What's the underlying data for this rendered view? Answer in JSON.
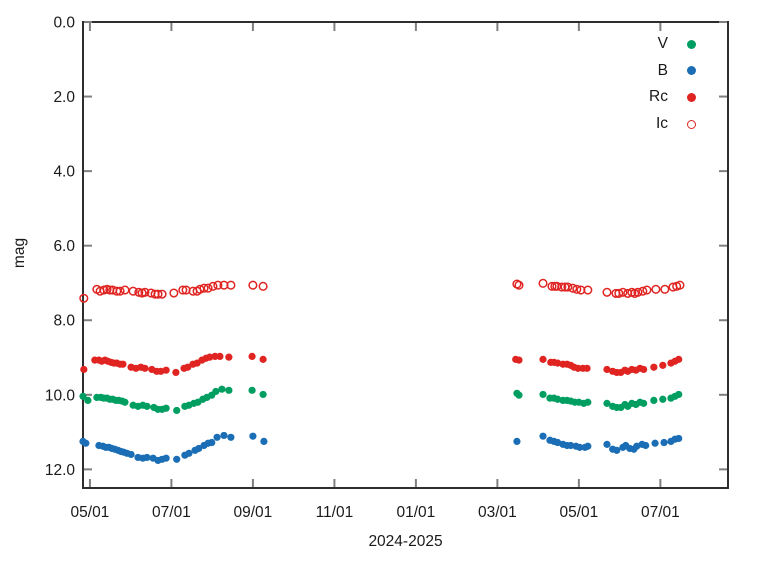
{
  "figure": {
    "background": "#ffffff",
    "border_color": "#2e2e2e",
    "tick_color": "#7f7f7f",
    "text_color": "#1a1a1a"
  },
  "chart_data": {
    "type": "scatter",
    "title": "",
    "xlabel": "2024-2025",
    "ylabel": "mag",
    "y_inverted": true,
    "grid": false,
    "x_axis": {
      "unit": "months since 2024-05-01",
      "range": [
        -0.17,
        15.66
      ],
      "ticks": [
        0,
        2,
        4,
        6,
        8,
        10,
        12,
        14
      ],
      "tick_labels": [
        "05/01",
        "07/01",
        "09/01",
        "11/01",
        "01/01",
        "03/01",
        "05/01",
        "07/01"
      ]
    },
    "y_axis": {
      "range": [
        0,
        12.5
      ],
      "ticks": [
        0,
        2,
        4,
        6,
        8,
        10,
        12
      ],
      "tick_labels": [
        "0.0",
        "2.0",
        "4.0",
        "6.0",
        "8.0",
        "10.0",
        "12.0"
      ]
    },
    "legend": {
      "position": "top-right"
    },
    "series": [
      {
        "name": "V",
        "color": "#009e60",
        "marker": "filled-circle",
        "points": [
          [
            -0.17,
            10.04
          ],
          [
            -0.05,
            10.15
          ],
          [
            0.17,
            10.07
          ],
          [
            0.27,
            10.07
          ],
          [
            0.34,
            10.09
          ],
          [
            0.42,
            10.09
          ],
          [
            0.49,
            10.12
          ],
          [
            0.56,
            10.12
          ],
          [
            0.64,
            10.15
          ],
          [
            0.71,
            10.15
          ],
          [
            0.79,
            10.17
          ],
          [
            0.86,
            10.2
          ],
          [
            1.06,
            10.28
          ],
          [
            1.18,
            10.31
          ],
          [
            1.3,
            10.28
          ],
          [
            1.4,
            10.31
          ],
          [
            1.57,
            10.34
          ],
          [
            1.67,
            10.39
          ],
          [
            1.77,
            10.39
          ],
          [
            1.87,
            10.36
          ],
          [
            2.13,
            10.42
          ],
          [
            2.33,
            10.31
          ],
          [
            2.43,
            10.28
          ],
          [
            2.55,
            10.23
          ],
          [
            2.65,
            10.2
          ],
          [
            2.77,
            10.12
          ],
          [
            2.87,
            10.07
          ],
          [
            2.99,
            10.01
          ],
          [
            3.09,
            9.91
          ],
          [
            3.24,
            9.85
          ],
          [
            3.41,
            9.88
          ],
          [
            3.98,
            9.88
          ],
          [
            4.25,
            9.99
          ],
          [
            10.48,
            9.96
          ],
          [
            10.53,
            10.01
          ],
          [
            11.12,
            9.99
          ],
          [
            11.29,
            10.09
          ],
          [
            11.39,
            10.09
          ],
          [
            11.48,
            10.12
          ],
          [
            11.61,
            10.15
          ],
          [
            11.71,
            10.15
          ],
          [
            11.8,
            10.17
          ],
          [
            11.9,
            10.2
          ],
          [
            12.0,
            10.2
          ],
          [
            12.12,
            10.23
          ],
          [
            12.22,
            10.2
          ],
          [
            12.69,
            10.23
          ],
          [
            12.83,
            10.31
          ],
          [
            12.93,
            10.34
          ],
          [
            13.03,
            10.34
          ],
          [
            13.13,
            10.26
          ],
          [
            13.2,
            10.31
          ],
          [
            13.3,
            10.23
          ],
          [
            13.4,
            10.26
          ],
          [
            13.5,
            10.2
          ],
          [
            13.59,
            10.23
          ],
          [
            13.84,
            10.15
          ],
          [
            14.06,
            10.12
          ],
          [
            14.26,
            10.09
          ],
          [
            14.36,
            10.04
          ],
          [
            14.45,
            9.99
          ]
        ]
      },
      {
        "name": "B",
        "color": "#1b6eb5",
        "marker": "filled-circle",
        "points": [
          [
            -0.17,
            11.25
          ],
          [
            -0.1,
            11.3
          ],
          [
            0.22,
            11.36
          ],
          [
            0.32,
            11.38
          ],
          [
            0.39,
            11.41
          ],
          [
            0.47,
            11.41
          ],
          [
            0.54,
            11.44
          ],
          [
            0.61,
            11.46
          ],
          [
            0.69,
            11.49
          ],
          [
            0.76,
            11.52
          ],
          [
            0.83,
            11.54
          ],
          [
            0.91,
            11.57
          ],
          [
            1.01,
            11.6
          ],
          [
            1.18,
            11.68
          ],
          [
            1.3,
            11.7
          ],
          [
            1.4,
            11.68
          ],
          [
            1.55,
            11.7
          ],
          [
            1.67,
            11.76
          ],
          [
            1.77,
            11.73
          ],
          [
            1.87,
            11.7
          ],
          [
            2.13,
            11.73
          ],
          [
            2.33,
            11.62
          ],
          [
            2.43,
            11.57
          ],
          [
            2.58,
            11.49
          ],
          [
            2.67,
            11.44
          ],
          [
            2.8,
            11.36
          ],
          [
            2.9,
            11.3
          ],
          [
            2.99,
            11.28
          ],
          [
            3.12,
            11.14
          ],
          [
            3.29,
            11.09
          ],
          [
            3.46,
            11.14
          ],
          [
            4.0,
            11.11
          ],
          [
            4.27,
            11.25
          ],
          [
            10.48,
            11.25
          ],
          [
            11.12,
            11.11
          ],
          [
            11.29,
            11.22
          ],
          [
            11.39,
            11.25
          ],
          [
            11.48,
            11.28
          ],
          [
            11.61,
            11.33
          ],
          [
            11.71,
            11.36
          ],
          [
            11.8,
            11.36
          ],
          [
            11.93,
            11.38
          ],
          [
            12.02,
            11.41
          ],
          [
            12.15,
            11.41
          ],
          [
            12.22,
            11.38
          ],
          [
            12.69,
            11.33
          ],
          [
            12.83,
            11.46
          ],
          [
            12.93,
            11.49
          ],
          [
            13.08,
            11.41
          ],
          [
            13.15,
            11.36
          ],
          [
            13.25,
            11.44
          ],
          [
            13.35,
            11.46
          ],
          [
            13.42,
            11.38
          ],
          [
            13.55,
            11.33
          ],
          [
            13.64,
            11.36
          ],
          [
            13.87,
            11.3
          ],
          [
            14.09,
            11.28
          ],
          [
            14.26,
            11.25
          ],
          [
            14.36,
            11.19
          ],
          [
            14.45,
            11.17
          ]
        ]
      },
      {
        "name": "Rc",
        "color": "#e02421",
        "marker": "filled-circle",
        "points": [
          [
            -0.15,
            9.32
          ],
          [
            0.12,
            9.07
          ],
          [
            0.22,
            9.07
          ],
          [
            0.29,
            9.1
          ],
          [
            0.37,
            9.07
          ],
          [
            0.44,
            9.1
          ],
          [
            0.52,
            9.13
          ],
          [
            0.59,
            9.15
          ],
          [
            0.66,
            9.15
          ],
          [
            0.74,
            9.18
          ],
          [
            0.81,
            9.18
          ],
          [
            1.01,
            9.26
          ],
          [
            1.13,
            9.29
          ],
          [
            1.25,
            9.26
          ],
          [
            1.35,
            9.29
          ],
          [
            1.52,
            9.32
          ],
          [
            1.64,
            9.37
          ],
          [
            1.74,
            9.37
          ],
          [
            1.87,
            9.34
          ],
          [
            2.11,
            9.4
          ],
          [
            2.31,
            9.29
          ],
          [
            2.4,
            9.26
          ],
          [
            2.53,
            9.18
          ],
          [
            2.63,
            9.15
          ],
          [
            2.75,
            9.07
          ],
          [
            2.85,
            9.02
          ],
          [
            2.94,
            8.99
          ],
          [
            3.07,
            8.97
          ],
          [
            3.19,
            8.97
          ],
          [
            3.41,
            8.99
          ],
          [
            3.98,
            8.97
          ],
          [
            4.25,
            9.05
          ],
          [
            10.45,
            9.05
          ],
          [
            10.53,
            9.07
          ],
          [
            11.12,
            9.05
          ],
          [
            11.31,
            9.13
          ],
          [
            11.39,
            9.13
          ],
          [
            11.48,
            9.15
          ],
          [
            11.61,
            9.18
          ],
          [
            11.71,
            9.18
          ],
          [
            11.8,
            9.21
          ],
          [
            11.88,
            9.26
          ],
          [
            11.98,
            9.29
          ],
          [
            12.1,
            9.29
          ],
          [
            12.2,
            9.29
          ],
          [
            12.69,
            9.32
          ],
          [
            12.83,
            9.37
          ],
          [
            12.93,
            9.4
          ],
          [
            13.03,
            9.4
          ],
          [
            13.13,
            9.34
          ],
          [
            13.2,
            9.37
          ],
          [
            13.3,
            9.32
          ],
          [
            13.4,
            9.34
          ],
          [
            13.5,
            9.29
          ],
          [
            13.59,
            9.32
          ],
          [
            13.84,
            9.26
          ],
          [
            14.06,
            9.21
          ],
          [
            14.26,
            9.15
          ],
          [
            14.36,
            9.1
          ],
          [
            14.45,
            9.05
          ]
        ]
      },
      {
        "name": "Ic",
        "color": "#e02421",
        "marker": "open-circle",
        "points": [
          [
            -0.15,
            7.41
          ],
          [
            0.17,
            7.17
          ],
          [
            0.25,
            7.22
          ],
          [
            0.34,
            7.19
          ],
          [
            0.42,
            7.17
          ],
          [
            0.49,
            7.19
          ],
          [
            0.56,
            7.19
          ],
          [
            0.66,
            7.22
          ],
          [
            0.74,
            7.22
          ],
          [
            0.86,
            7.19
          ],
          [
            1.06,
            7.22
          ],
          [
            1.2,
            7.25
          ],
          [
            1.28,
            7.27
          ],
          [
            1.35,
            7.25
          ],
          [
            1.5,
            7.27
          ],
          [
            1.6,
            7.3
          ],
          [
            1.67,
            7.3
          ],
          [
            1.77,
            7.3
          ],
          [
            2.06,
            7.27
          ],
          [
            2.28,
            7.19
          ],
          [
            2.36,
            7.19
          ],
          [
            2.53,
            7.22
          ],
          [
            2.63,
            7.22
          ],
          [
            2.7,
            7.17
          ],
          [
            2.8,
            7.14
          ],
          [
            2.9,
            7.14
          ],
          [
            3.02,
            7.09
          ],
          [
            3.14,
            7.06
          ],
          [
            3.29,
            7.06
          ],
          [
            3.46,
            7.06
          ],
          [
            4.0,
            7.06
          ],
          [
            4.25,
            7.09
          ],
          [
            10.48,
            7.03
          ],
          [
            10.53,
            7.06
          ],
          [
            11.12,
            7.01
          ],
          [
            11.34,
            7.09
          ],
          [
            11.41,
            7.09
          ],
          [
            11.46,
            7.09
          ],
          [
            11.58,
            7.11
          ],
          [
            11.66,
            7.11
          ],
          [
            11.73,
            7.11
          ],
          [
            11.85,
            7.14
          ],
          [
            11.95,
            7.17
          ],
          [
            12.05,
            7.19
          ],
          [
            12.22,
            7.19
          ],
          [
            12.69,
            7.25
          ],
          [
            12.91,
            7.28
          ],
          [
            12.98,
            7.28
          ],
          [
            13.08,
            7.25
          ],
          [
            13.2,
            7.28
          ],
          [
            13.3,
            7.25
          ],
          [
            13.37,
            7.28
          ],
          [
            13.45,
            7.25
          ],
          [
            13.57,
            7.22
          ],
          [
            13.67,
            7.19
          ],
          [
            13.89,
            7.17
          ],
          [
            14.11,
            7.17
          ],
          [
            14.31,
            7.11
          ],
          [
            14.4,
            7.09
          ],
          [
            14.48,
            7.06
          ]
        ]
      }
    ]
  }
}
